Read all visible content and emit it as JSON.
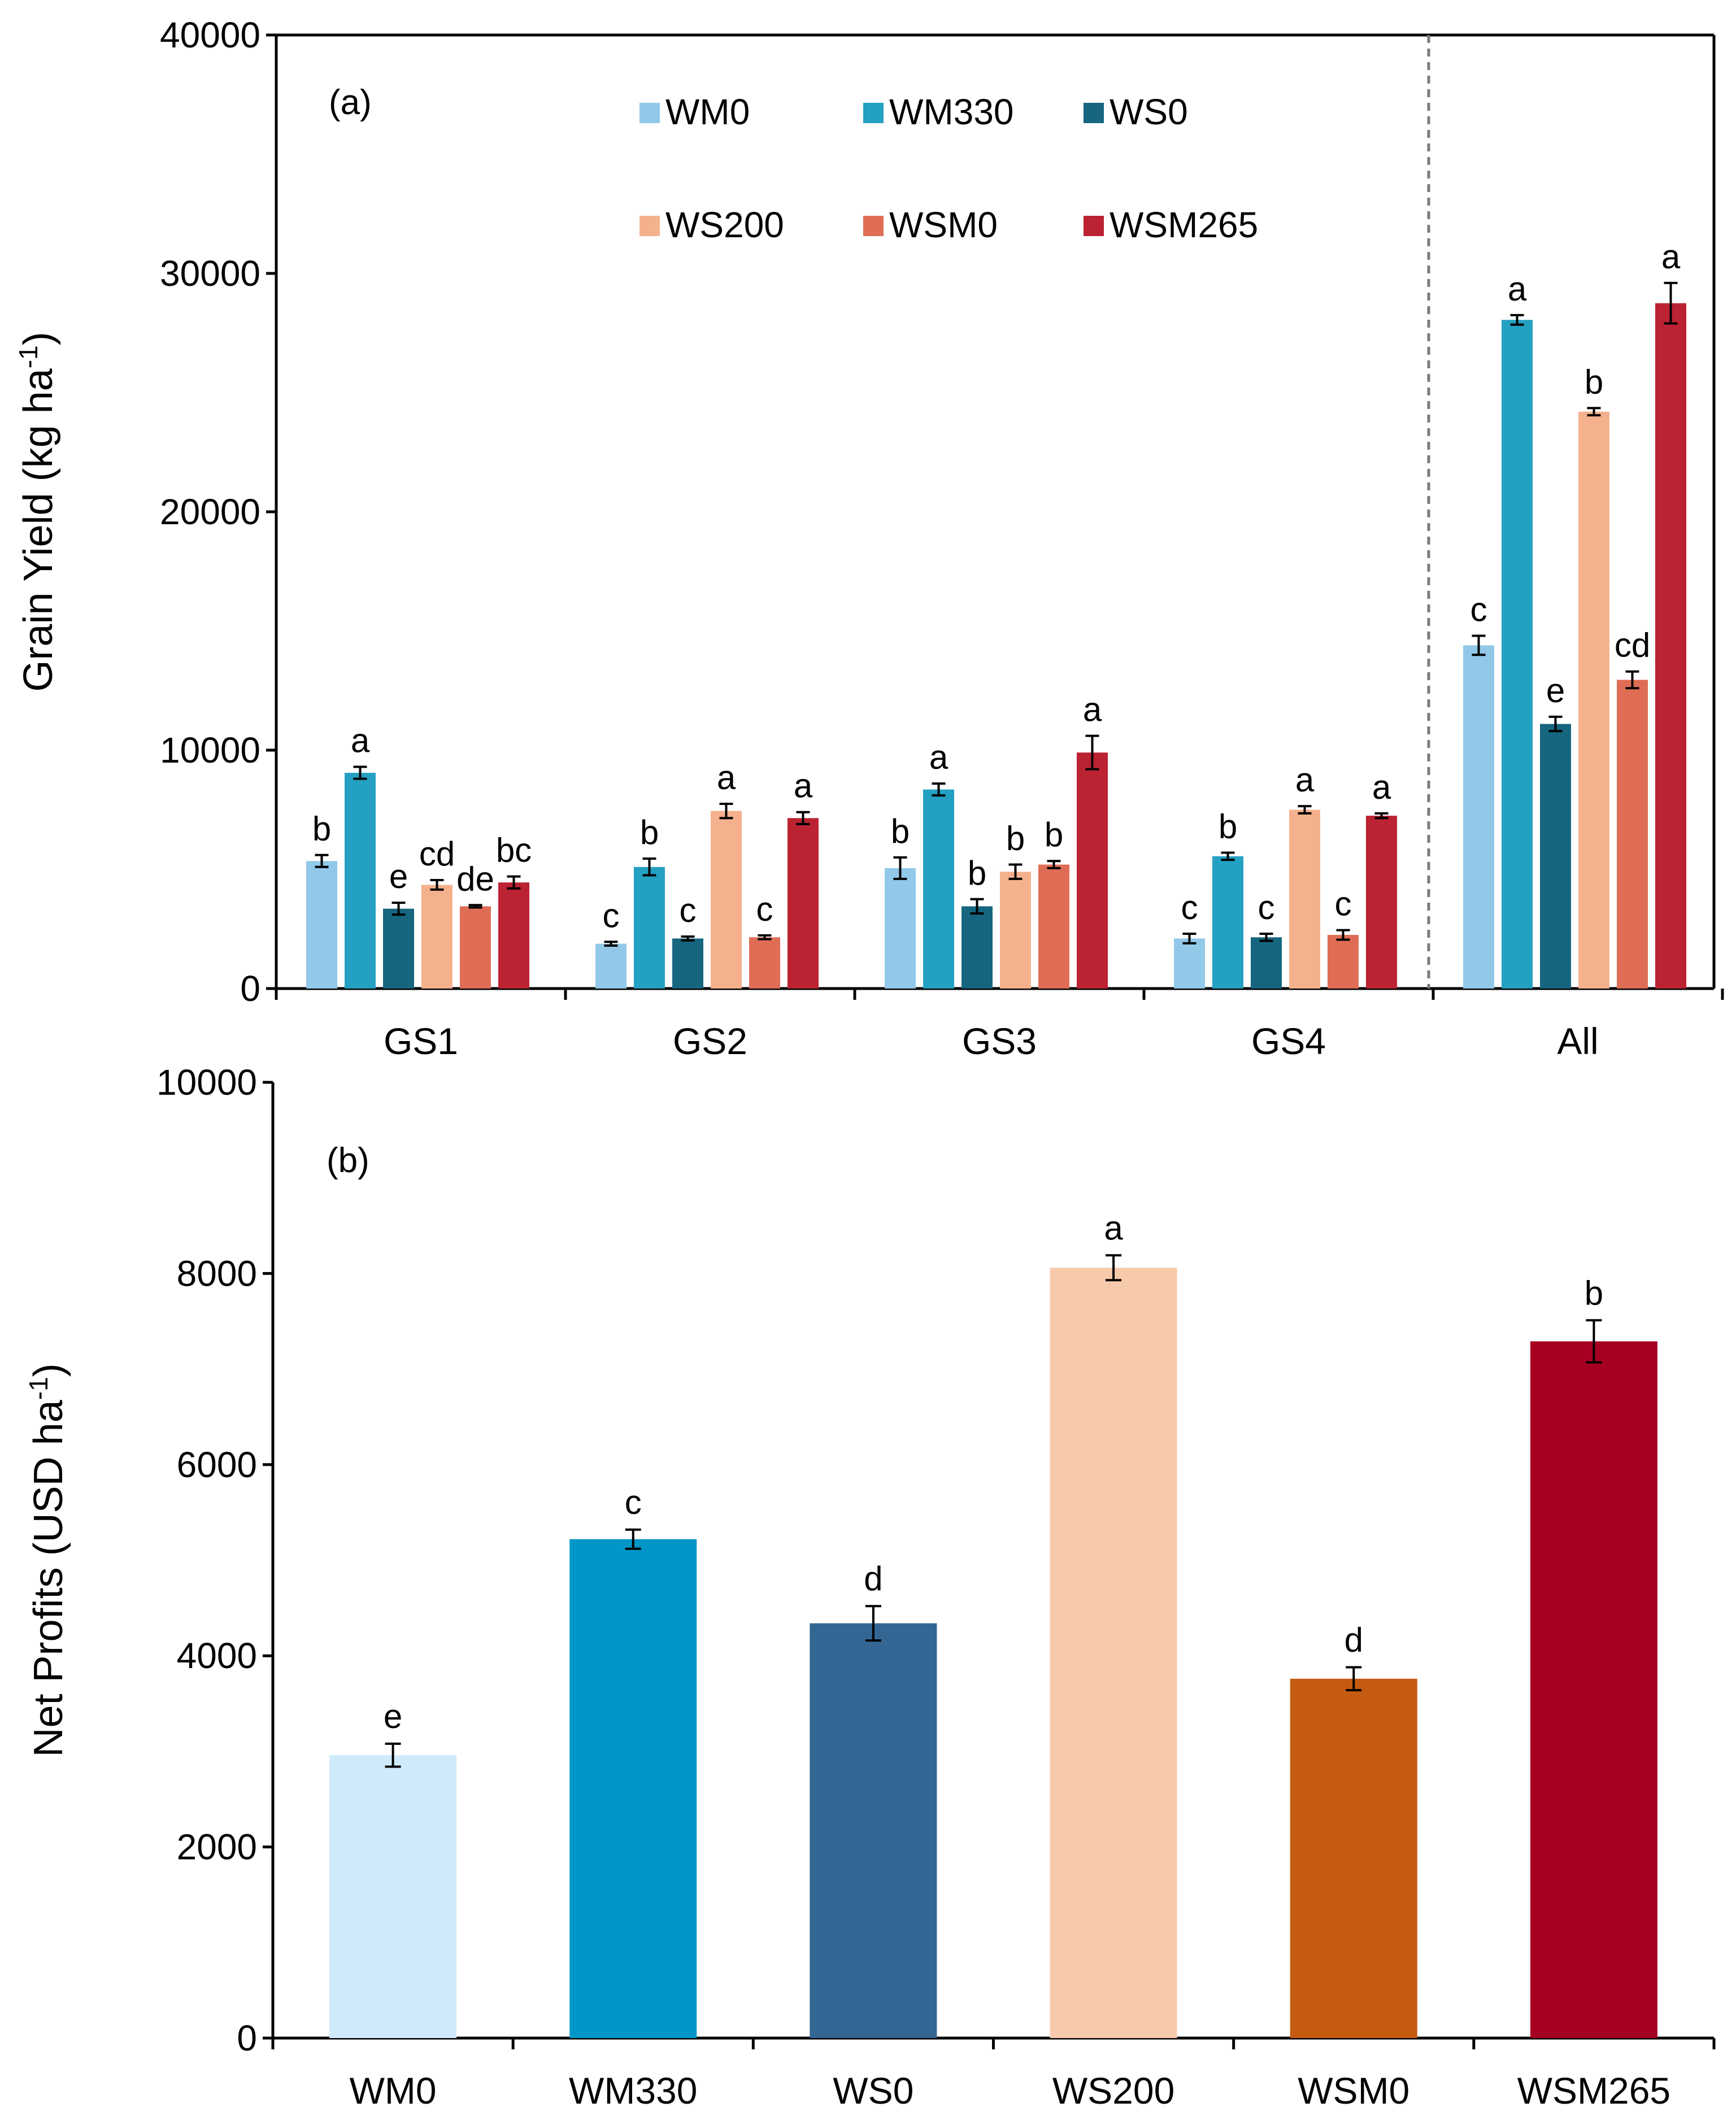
{
  "colors": {
    "WM0": "#92c9e8",
    "WM330": "#24a0c2",
    "WS0": "#166680",
    "WS200": "#f5b18d",
    "WSM0": "#df6d55",
    "WSM265": "#bb2232",
    "B_WM0": "#cfeafb",
    "B_WM330": "#0096c8",
    "B_WS0": "#336693",
    "B_WS200": "#f7caac",
    "B_WSM0": "#c55a11",
    "B_WSM265": "#a50021"
  },
  "chart_data": [
    {
      "type": "bar",
      "panel_label": "(a)",
      "ylabel": "Grain Yield (kg ha",
      "ylabel_sup": "-1",
      "ylabel_tail": ")",
      "ylim": [
        0,
        40000
      ],
      "yticks": [
        "0",
        "10000",
        "20000",
        "30000",
        "40000"
      ],
      "categories": [
        "GS1",
        "GS2",
        "GS3",
        "GS4",
        "All"
      ],
      "legend": [
        "WM0",
        "WM330",
        "WS0",
        "WS200",
        "WSM0",
        "WSM265"
      ],
      "legend_position": "top-center",
      "divider_before": "All",
      "series": [
        {
          "name": "WM0",
          "values": [
            5350,
            1880,
            5050,
            2100,
            14400
          ],
          "errors": [
            250,
            80,
            450,
            200,
            400
          ],
          "letters": [
            "b",
            "c",
            "b",
            "c",
            "c"
          ]
        },
        {
          "name": "WM330",
          "values": [
            9050,
            5100,
            8350,
            5550,
            28050
          ],
          "errors": [
            250,
            350,
            250,
            150,
            200
          ],
          "letters": [
            "a",
            "b",
            "a",
            "b",
            "a"
          ]
        },
        {
          "name": "WS0",
          "values": [
            3350,
            2100,
            3450,
            2150,
            11100
          ],
          "errors": [
            250,
            80,
            300,
            150,
            300
          ],
          "letters": [
            "e",
            "c",
            "b",
            "c",
            "e"
          ]
        },
        {
          "name": "WS200",
          "values": [
            4350,
            7450,
            4900,
            7500,
            24200
          ],
          "errors": [
            200,
            300,
            300,
            150,
            150
          ],
          "letters": [
            "cd",
            "a",
            "b",
            "a",
            "b"
          ]
        },
        {
          "name": "WSM0",
          "values": [
            3450,
            2150,
            5200,
            2250,
            12950
          ],
          "errors": [
            50,
            80,
            150,
            200,
            350
          ],
          "letters": [
            "de",
            "c",
            "b",
            "c",
            "cd"
          ]
        },
        {
          "name": "WSM265",
          "values": [
            4450,
            7150,
            9900,
            7250,
            28750
          ],
          "errors": [
            250,
            250,
            700,
            100,
            850
          ],
          "letters": [
            "bc",
            "a",
            "a",
            "a",
            "a"
          ]
        }
      ]
    },
    {
      "type": "bar",
      "panel_label": "(b)",
      "ylabel": "Net Profits (USD ha",
      "ylabel_sup": "-1",
      "ylabel_tail": ")",
      "ylim": [
        0,
        10000
      ],
      "yticks": [
        "0",
        "2000",
        "4000",
        "6000",
        "8000",
        "10000"
      ],
      "categories": [
        "WM0",
        "WM330",
        "WS0",
        "WS200",
        "WSM0",
        "WSM265"
      ],
      "values": [
        2960,
        5220,
        4340,
        8060,
        3760,
        7290
      ],
      "errors": [
        120,
        100,
        180,
        130,
        120,
        220
      ],
      "letters": [
        "e",
        "c",
        "d",
        "a",
        "d",
        "b"
      ]
    }
  ]
}
